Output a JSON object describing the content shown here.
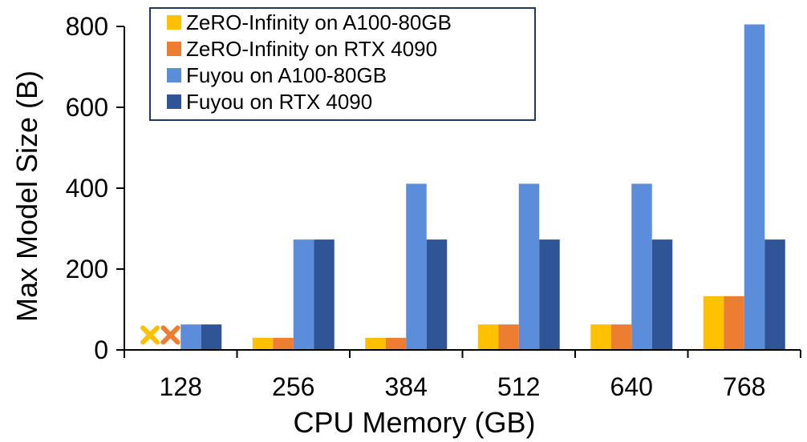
{
  "chart_data": {
    "type": "bar",
    "title": "",
    "xlabel": "CPU Memory (GB)",
    "ylabel": "Max Model Size (B)",
    "categories": [
      "128",
      "256",
      "384",
      "512",
      "640",
      "768"
    ],
    "ylim": [
      0,
      800
    ],
    "yticks": [
      "0",
      "200",
      "400",
      "600",
      "800"
    ],
    "grid": false,
    "legend_position": "top-left",
    "series": [
      {
        "name": "ZeRO-Infinity on A100-80GB",
        "color": "#FFC000",
        "values": [
          null,
          30,
          30,
          63,
          63,
          133
        ]
      },
      {
        "name": "ZeRO-Infinity on RTX 4090",
        "color": "#ED7D31",
        "values": [
          null,
          30,
          30,
          63,
          63,
          133
        ]
      },
      {
        "name": "Fuyou on A100-80GB",
        "color": "#5B8DDB",
        "values": [
          63,
          273,
          411,
          411,
          411,
          805
        ]
      },
      {
        "name": "Fuyou on RTX 4090",
        "color": "#2F5597",
        "values": [
          63,
          273,
          273,
          273,
          273,
          273
        ]
      }
    ],
    "annotations": [
      {
        "category": "128",
        "series": "ZeRO-Infinity on A100-80GB",
        "marker": "cross",
        "value": 27
      },
      {
        "category": "128",
        "series": "ZeRO-Infinity on RTX 4090",
        "marker": "cross",
        "value": 27
      }
    ]
  }
}
